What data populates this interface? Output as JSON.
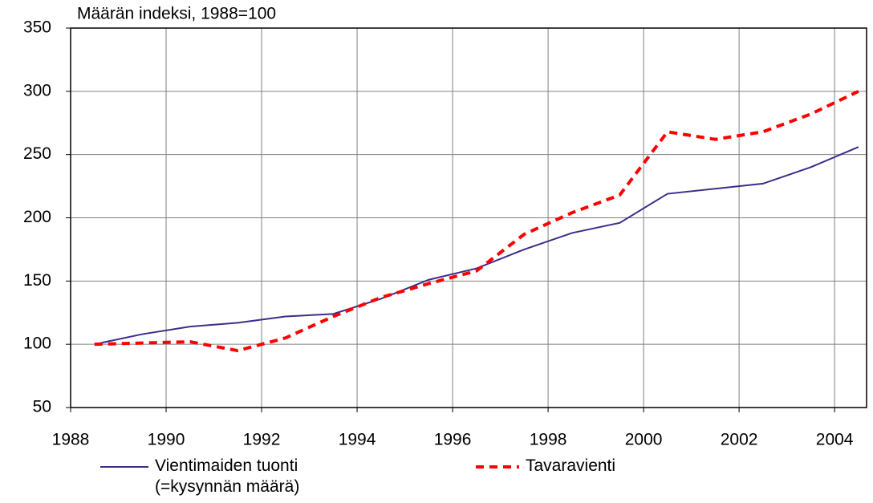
{
  "chart_data": {
    "type": "line",
    "y_label": "Määrän indeksi, 1988=100",
    "x": [
      1988.5,
      1989.5,
      1990.5,
      1991.5,
      1992.5,
      1993.5,
      1994.5,
      1995.5,
      1996.5,
      1997.5,
      1998.5,
      1999.5,
      2000.5,
      2001.5,
      2002.5,
      2003.5,
      2004.5
    ],
    "series": [
      {
        "name": "Vientimaiden tuonti\n(=kysynnän määrä)",
        "color": "#3a2e8a",
        "dashed": false,
        "values": [
          100,
          108,
          114,
          117,
          122,
          124,
          136,
          151,
          160,
          175,
          188,
          196,
          219,
          223,
          227,
          240,
          256
        ]
      },
      {
        "name": "Tavaravienti",
        "color": "#ff0000",
        "dashed": true,
        "values": [
          100,
          101,
          102,
          95,
          105,
          122,
          137,
          148,
          158,
          187,
          204,
          218,
          268,
          262,
          268,
          282,
          300
        ]
      }
    ],
    "xlim": [
      1988,
      2004.67
    ],
    "ylim": [
      50,
      350
    ],
    "xticks": [
      1988,
      1990,
      1992,
      1994,
      1996,
      1998,
      2000,
      2002,
      2004
    ],
    "yticks": [
      50,
      100,
      150,
      200,
      250,
      300,
      350
    ],
    "grid": true,
    "legend": "bottom"
  }
}
